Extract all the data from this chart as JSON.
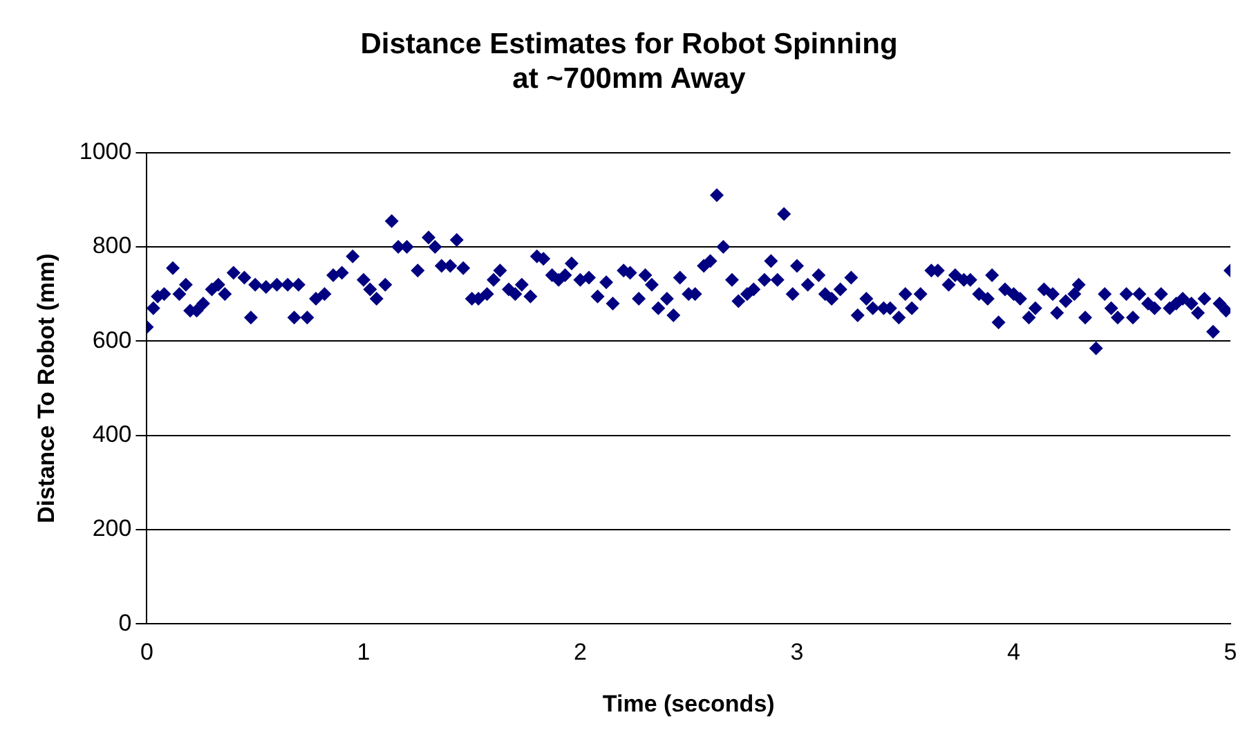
{
  "chart_data": {
    "type": "scatter",
    "title": "Distance Estimates for Robot Spinning\nat ~700mm Away",
    "xlabel": "Time (seconds)",
    "ylabel": "Distance To Robot (mm)",
    "xlim": [
      0,
      5
    ],
    "xticks": [
      0,
      1,
      2,
      3,
      4,
      5
    ],
    "ylim": [
      0,
      1000
    ],
    "yticks": [
      0,
      200,
      400,
      600,
      800,
      1000
    ],
    "grid": "y",
    "legend": false,
    "marker": "diamond",
    "series": [
      {
        "color": "#000080",
        "x": [
          0,
          0.03,
          0.05,
          0.08,
          0.12,
          0.15,
          0.18,
          0.2,
          0.23,
          0.26,
          0.3,
          0.33,
          0.36,
          0.4,
          0.45,
          0.48,
          0.5,
          0.55,
          0.6,
          0.65,
          0.68,
          0.7,
          0.74,
          0.78,
          0.82,
          0.86,
          0.9,
          0.95,
          1.0,
          1.03,
          1.06,
          1.1,
          1.13,
          1.16,
          1.2,
          1.25,
          1.3,
          1.33,
          1.36,
          1.4,
          1.43,
          1.46,
          1.5,
          1.53,
          1.57,
          1.6,
          1.63,
          1.67,
          1.7,
          1.73,
          1.77,
          1.8,
          1.83,
          1.87,
          1.9,
          1.93,
          1.96,
          2.0,
          2.04,
          2.08,
          2.12,
          2.15,
          2.2,
          2.23,
          2.27,
          2.3,
          2.33,
          2.36,
          2.4,
          2.43,
          2.46,
          2.5,
          2.53,
          2.57,
          2.6,
          2.63,
          2.66,
          2.7,
          2.73,
          2.77,
          2.8,
          2.85,
          2.88,
          2.91,
          2.94,
          2.98,
          3.0,
          3.05,
          3.1,
          3.13,
          3.16,
          3.2,
          3.25,
          3.28,
          3.32,
          3.35,
          3.4,
          3.43,
          3.47,
          3.5,
          3.53,
          3.57,
          3.62,
          3.65,
          3.7,
          3.73,
          3.77,
          3.8,
          3.84,
          3.88,
          3.9,
          3.93,
          3.96,
          4.0,
          4.03,
          4.07,
          4.1,
          4.14,
          4.18,
          4.2,
          4.24,
          4.28,
          4.3,
          4.33,
          4.38,
          4.42,
          4.45,
          4.48,
          4.52,
          4.55,
          4.58,
          4.62,
          4.65,
          4.68,
          4.72,
          4.75,
          4.78,
          4.82,
          4.85,
          4.88,
          4.92,
          4.95,
          4.98,
          5.0
        ],
        "values": [
          630,
          670,
          695,
          700,
          755,
          700,
          720,
          665,
          665,
          680,
          710,
          720,
          700,
          745,
          735,
          650,
          720,
          715,
          720,
          720,
          650,
          720,
          650,
          690,
          700,
          740,
          745,
          780,
          730,
          710,
          690,
          720,
          855,
          800,
          800,
          750,
          820,
          800,
          760,
          760,
          815,
          755,
          690,
          690,
          700,
          730,
          750,
          710,
          700,
          720,
          695,
          780,
          775,
          740,
          730,
          740,
          765,
          730,
          735,
          695,
          725,
          680,
          750,
          745,
          690,
          740,
          720,
          670,
          690,
          655,
          735,
          700,
          700,
          760,
          770,
          910,
          800,
          730,
          685,
          700,
          710,
          730,
          770,
          730,
          870,
          700,
          760,
          720,
          740,
          700,
          690,
          710,
          735,
          655,
          690,
          670,
          670,
          670,
          650,
          700,
          670,
          700,
          750,
          750,
          720,
          740,
          730,
          730,
          700,
          690,
          740,
          640,
          710,
          700,
          690,
          650,
          670,
          710,
          700,
          660,
          685,
          700,
          720,
          650,
          585,
          700,
          670,
          650,
          700,
          650,
          700,
          680,
          670,
          700,
          670,
          680,
          690,
          680,
          660,
          690,
          620,
          680,
          665,
          750
        ]
      }
    ]
  }
}
